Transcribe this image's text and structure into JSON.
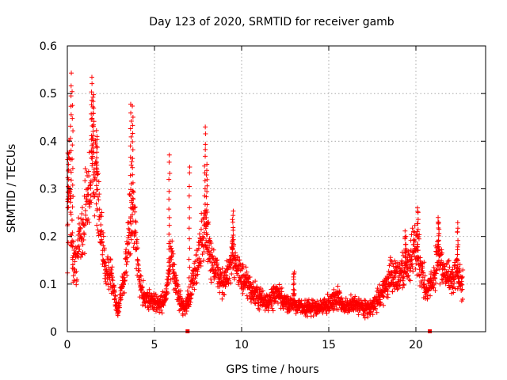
{
  "chart_data": {
    "type": "scatter",
    "title": "Day 123 of 2020, SRMTID for receiver gamb",
    "xlabel": "GPS time / hours",
    "ylabel": "SRMTID / TECUs",
    "xlim": [
      0,
      24
    ],
    "ylim": [
      0,
      0.6
    ],
    "xticks": [
      0,
      5,
      10,
      15,
      20
    ],
    "yticks": [
      0,
      0.1,
      0.2,
      0.3,
      0.4,
      0.5,
      0.6
    ],
    "xtick_labels": [
      "0",
      "5",
      "10",
      "15",
      "20"
    ],
    "ytick_labels": [
      "0",
      "0.1",
      "0.2",
      "0.3",
      "0.4",
      "0.5",
      "0.6"
    ],
    "grid": true,
    "marker": "+",
    "marker_color": "#ff0000",
    "series": [
      {
        "name": "SRMTID",
        "profile": [
          [
            0.0,
            0.2
          ],
          [
            0.1,
            0.33
          ],
          [
            0.2,
            0.25
          ],
          [
            0.3,
            0.15
          ],
          [
            0.5,
            0.14
          ],
          [
            0.7,
            0.2
          ],
          [
            0.9,
            0.22
          ],
          [
            1.1,
            0.27
          ],
          [
            1.3,
            0.31
          ],
          [
            1.5,
            0.38
          ],
          [
            1.7,
            0.3
          ],
          [
            1.9,
            0.2
          ],
          [
            2.1,
            0.15
          ],
          [
            2.3,
            0.13
          ],
          [
            2.5,
            0.12
          ],
          [
            2.7,
            0.08
          ],
          [
            2.9,
            0.04
          ],
          [
            3.1,
            0.09
          ],
          [
            3.3,
            0.12
          ],
          [
            3.5,
            0.18
          ],
          [
            3.7,
            0.26
          ],
          [
            3.9,
            0.2
          ],
          [
            4.1,
            0.12
          ],
          [
            4.3,
            0.08
          ],
          [
            4.6,
            0.07
          ],
          [
            5.0,
            0.06
          ],
          [
            5.4,
            0.06
          ],
          [
            5.7,
            0.08
          ],
          [
            5.9,
            0.15
          ],
          [
            6.1,
            0.13
          ],
          [
            6.4,
            0.07
          ],
          [
            6.7,
            0.05
          ],
          [
            7.0,
            0.07
          ],
          [
            7.3,
            0.12
          ],
          [
            7.6,
            0.17
          ],
          [
            7.9,
            0.22
          ],
          [
            8.2,
            0.16
          ],
          [
            8.6,
            0.12
          ],
          [
            9.0,
            0.1
          ],
          [
            9.3,
            0.13
          ],
          [
            9.6,
            0.16
          ],
          [
            10.0,
            0.11
          ],
          [
            10.5,
            0.09
          ],
          [
            11.0,
            0.07
          ],
          [
            11.5,
            0.06
          ],
          [
            12.0,
            0.08
          ],
          [
            12.5,
            0.06
          ],
          [
            13.0,
            0.06
          ],
          [
            13.5,
            0.05
          ],
          [
            14.0,
            0.05
          ],
          [
            14.5,
            0.05
          ],
          [
            15.0,
            0.06
          ],
          [
            15.5,
            0.07
          ],
          [
            16.0,
            0.05
          ],
          [
            16.5,
            0.06
          ],
          [
            17.0,
            0.05
          ],
          [
            17.5,
            0.05
          ],
          [
            18.0,
            0.08
          ],
          [
            18.5,
            0.11
          ],
          [
            19.0,
            0.12
          ],
          [
            19.5,
            0.14
          ],
          [
            20.0,
            0.18
          ],
          [
            20.3,
            0.14
          ],
          [
            20.6,
            0.08
          ],
          [
            21.0,
            0.11
          ],
          [
            21.3,
            0.17
          ],
          [
            21.6,
            0.12
          ],
          [
            22.0,
            0.11
          ],
          [
            22.4,
            0.12
          ],
          [
            22.7,
            0.1
          ]
        ],
        "peaks": [
          [
            0.05,
            0.38
          ],
          [
            0.2,
            0.54
          ],
          [
            0.3,
            0.5
          ],
          [
            1.4,
            0.53
          ],
          [
            1.5,
            0.5
          ],
          [
            1.7,
            0.42
          ],
          [
            3.65,
            0.48
          ],
          [
            3.75,
            0.47
          ],
          [
            5.85,
            0.37
          ],
          [
            7.0,
            0.35
          ],
          [
            7.9,
            0.43
          ],
          [
            8.0,
            0.35
          ],
          [
            9.5,
            0.25
          ],
          [
            13.0,
            0.13
          ],
          [
            19.4,
            0.21
          ],
          [
            20.1,
            0.26
          ],
          [
            21.3,
            0.24
          ],
          [
            22.4,
            0.23
          ]
        ],
        "zeros": [
          6.9,
          20.8
        ]
      }
    ]
  }
}
